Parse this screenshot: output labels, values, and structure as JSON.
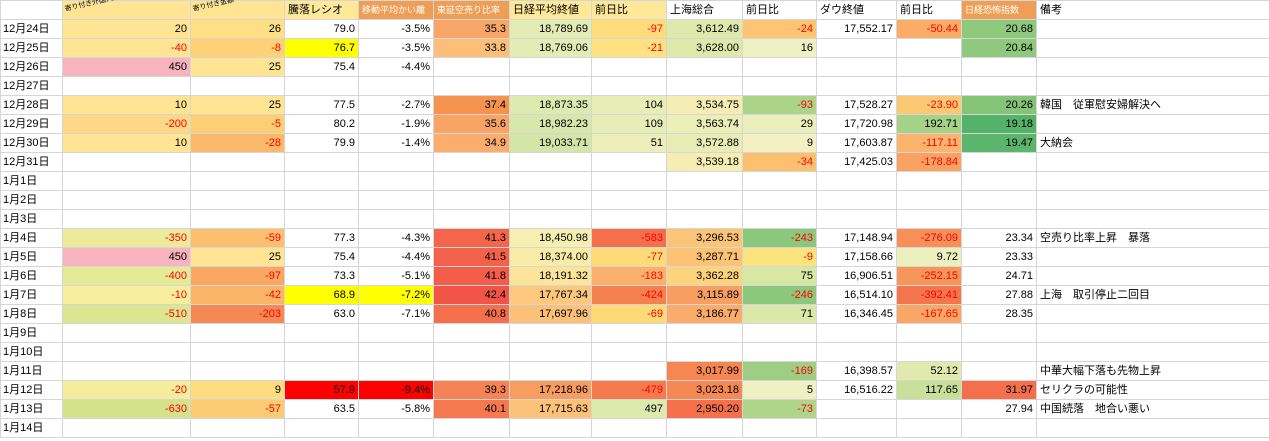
{
  "grid": {
    "headers": [
      {
        "label": ""
      },
      {
        "label": "寄り付き外国人売り買い（万株）",
        "bg": "#FFE593",
        "tiny": true
      },
      {
        "label": "寄り付き金額ベース（億）",
        "bg": "#FFE593",
        "tiny": true
      },
      {
        "label": "騰落レシオ",
        "bg": "#FFE999"
      },
      {
        "label": "移動平均かい離",
        "bg": "#EF9F55",
        "white": true,
        "small": true
      },
      {
        "label": "東証空売り比率",
        "bg": "#EF9F55",
        "white": true,
        "small": true
      },
      {
        "label": "日経平均終値",
        "bg": "#FFE999"
      },
      {
        "label": "前日比",
        "bg": "#FFE999"
      },
      {
        "label": "上海総合"
      },
      {
        "label": "前日比"
      },
      {
        "label": "ダウ終値"
      },
      {
        "label": "前日比"
      },
      {
        "label": "日経恐怖指数",
        "bg": "#EF9F55",
        "white": true,
        "small": true
      },
      {
        "label": "備考"
      }
    ],
    "rows": [
      {
        "date": "12月24日",
        "cells": [
          {
            "v": "20",
            "bg": "#FFE593"
          },
          {
            "v": "26",
            "bg": "#FEDF85"
          },
          {
            "v": "79.0"
          },
          {
            "v": "-3.5%"
          },
          {
            "v": "35.3",
            "bg": "#F9A768"
          },
          {
            "v": "18,789.69",
            "bg": "#E2ECB4"
          },
          {
            "v": "-97",
            "bg": "#FEDC7B",
            "red": true
          },
          {
            "v": "3,612.49",
            "bg": "#DFE9AC"
          },
          {
            "v": "-24",
            "bg": "#FDC474",
            "red": true
          },
          {
            "v": "17,552.17"
          },
          {
            "v": "-50.44",
            "bg": "#FBAC67",
            "red": true
          },
          {
            "v": "20.68",
            "bg": "#8FC97D"
          },
          {}
        ]
      },
      {
        "date": "12月25日",
        "cells": [
          {
            "v": "-40",
            "bg": "#FFE593",
            "red": true
          },
          {
            "v": "-8",
            "bg": "#FDD276",
            "red": true
          },
          {
            "v": "76.7",
            "bg": "#FFFF00"
          },
          {
            "v": "-3.5%"
          },
          {
            "v": "33.8",
            "bg": "#FCBE78"
          },
          {
            "v": "18,769.06",
            "bg": "#E3ECB5"
          },
          {
            "v": "-21",
            "bg": "#FEE180",
            "red": true
          },
          {
            "v": "3,628.00",
            "bg": "#DDE8AA"
          },
          {
            "v": "16",
            "bg": "#EDF0C0"
          },
          {},
          {},
          {
            "v": "20.84",
            "bg": "#8FC97D"
          },
          {}
        ]
      },
      {
        "date": "12月26日",
        "cells": [
          {
            "v": "450",
            "bg": "#F7B3BE"
          },
          {
            "v": "25",
            "bg": "#FFE593"
          },
          {
            "v": "75.4"
          },
          {
            "v": "-4.4%"
          },
          {},
          {},
          {},
          {},
          {},
          {},
          {},
          {},
          {}
        ]
      },
      {
        "date": "12月27日",
        "cells": []
      },
      {
        "date": "12月28日",
        "cells": [
          {
            "v": "10",
            "bg": "#FFE593"
          },
          {
            "v": "25",
            "bg": "#FFE593"
          },
          {
            "v": "77.5"
          },
          {
            "v": "-2.7%"
          },
          {
            "v": "37.4",
            "bg": "#F6934F"
          },
          {
            "v": "18,873.35",
            "bg": "#DEEAB0"
          },
          {
            "v": "104",
            "bg": "#E6EDB6"
          },
          {
            "v": "3,534.75",
            "bg": "#F5EDB4"
          },
          {
            "v": "-93",
            "bg": "#ACD489",
            "red": true
          },
          {
            "v": "17,528.27"
          },
          {
            "v": "-23.90",
            "bg": "#FDC873",
            "red": true
          },
          {
            "v": "20.26",
            "bg": "#84C476"
          },
          {
            "v": "韓国　従軍慰安婦解決へ"
          }
        ]
      },
      {
        "date": "12月29日",
        "cells": [
          {
            "v": "-200",
            "bg": "#FED886",
            "red": true
          },
          {
            "v": "-5",
            "bg": "#FDCF74",
            "red": true
          },
          {
            "v": "80.2"
          },
          {
            "v": "-1.9%"
          },
          {
            "v": "35.6",
            "bg": "#F9A465"
          },
          {
            "v": "18,982.23",
            "bg": "#D8E7AB"
          },
          {
            "v": "109",
            "bg": "#E6EDB6"
          },
          {
            "v": "3,563.74",
            "bg": "#EAEEB7"
          },
          {
            "v": "29",
            "bg": "#E9EFBC"
          },
          {
            "v": "17,720.98"
          },
          {
            "v": "192.71",
            "bg": "#A5D286"
          },
          {
            "v": "19.18",
            "bg": "#55B269"
          },
          {}
        ]
      },
      {
        "date": "12月30日",
        "cells": [
          {
            "v": "10",
            "bg": "#FFE593"
          },
          {
            "v": "-28",
            "bg": "#FBB96A",
            "red": true
          },
          {
            "v": "79.9"
          },
          {
            "v": "-1.4%"
          },
          {
            "v": "34.9",
            "bg": "#FAAD6C"
          },
          {
            "v": "19,033.71",
            "bg": "#D4E5A8"
          },
          {
            "v": "51",
            "bg": "#EDEFBA"
          },
          {
            "v": "3,572.88",
            "bg": "#E8EDB5"
          },
          {
            "v": "9",
            "bg": "#F2F1C3"
          },
          {
            "v": "17,603.87"
          },
          {
            "v": "-117.11",
            "bg": "#FAB46D",
            "red": true
          },
          {
            "v": "19.47",
            "bg": "#5CB56C"
          },
          {
            "v": "大納会"
          }
        ]
      },
      {
        "date": "12月31日",
        "cells": [
          {},
          {},
          {},
          {},
          {},
          {},
          {},
          {
            "v": "3,539.18",
            "bg": "#F5EDB4"
          },
          {
            "v": "-34",
            "bg": "#FCC06F",
            "red": true
          },
          {
            "v": "17,425.03"
          },
          {
            "v": "-178.84",
            "bg": "#F9A262",
            "red": true
          },
          {},
          {}
        ]
      },
      {
        "date": "1月1日",
        "cells": []
      },
      {
        "date": "1月2日",
        "cells": []
      },
      {
        "date": "1月3日",
        "cells": []
      },
      {
        "date": "1月4日",
        "cells": [
          {
            "v": "-350",
            "bg": "#EDEB9A",
            "red": true
          },
          {
            "v": "-59",
            "bg": "#FBBF6E",
            "red": true
          },
          {
            "v": "77.3"
          },
          {
            "v": "-4.3%"
          },
          {
            "v": "41.3",
            "bg": "#F4664B"
          },
          {
            "v": "18,450.98",
            "bg": "#F7EFB2"
          },
          {
            "v": "-583",
            "bg": "#F4704D",
            "red": true
          },
          {
            "v": "3,296.53",
            "bg": "#FCC476"
          },
          {
            "v": "-243",
            "bg": "#8CC87B",
            "red": true
          },
          {
            "v": "17,148.94"
          },
          {
            "v": "-276.09",
            "bg": "#F78F58",
            "red": true
          },
          {
            "v": "23.34"
          },
          {
            "v": "空売り比率上昇　暴落"
          }
        ]
      },
      {
        "date": "1月5日",
        "cells": [
          {
            "v": "450",
            "bg": "#F7B3BE"
          },
          {
            "v": "25",
            "bg": "#FFE593"
          },
          {
            "v": "75.4"
          },
          {
            "v": "-4.4%"
          },
          {
            "v": "41.5",
            "bg": "#F3614A"
          },
          {
            "v": "18,374.00",
            "bg": "#F9ECA8"
          },
          {
            "v": "-77",
            "bg": "#FEDA79",
            "red": true
          },
          {
            "v": "3,287.71",
            "bg": "#FCC375"
          },
          {
            "v": "-9",
            "bg": "#FBE47D",
            "red": true
          },
          {
            "v": "17,158.66"
          },
          {
            "v": "9.72",
            "bg": "#EBF0BE"
          },
          {
            "v": "23.33"
          },
          {}
        ]
      },
      {
        "date": "1月6日",
        "cells": [
          {
            "v": "-400",
            "bg": "#E4EA96",
            "red": true
          },
          {
            "v": "-97",
            "bg": "#F9A763",
            "red": true
          },
          {
            "v": "73.3"
          },
          {
            "v": "-5.1%"
          },
          {
            "v": "41.8",
            "bg": "#F35D49"
          },
          {
            "v": "18,191.32",
            "bg": "#FCE49A"
          },
          {
            "v": "-183",
            "bg": "#FBB16B",
            "red": true
          },
          {
            "v": "3,362.28",
            "bg": "#FDD47C"
          },
          {
            "v": "75",
            "bg": "#D9E7A5"
          },
          {
            "v": "16,906.51"
          },
          {
            "v": "-252.15",
            "bg": "#F79659",
            "red": true
          },
          {
            "v": "24.71"
          },
          {}
        ]
      },
      {
        "date": "1月7日",
        "cells": [
          {
            "v": "-10",
            "bg": "#F6EE9E",
            "red": true
          },
          {
            "v": "-42",
            "bg": "#FBB569",
            "red": true
          },
          {
            "v": "68.9",
            "bg": "#FFFF00"
          },
          {
            "v": "-7.2%",
            "bg": "#FFFF00"
          },
          {
            "v": "42.4",
            "bg": "#F25548"
          },
          {
            "v": "17,767.34",
            "bg": "#FCC77E"
          },
          {
            "v": "-424",
            "bg": "#F5814F",
            "red": true
          },
          {
            "v": "3,115.89",
            "bg": "#F89E60"
          },
          {
            "v": "-246",
            "bg": "#8CC87B",
            "red": true
          },
          {
            "v": "16,514.10"
          },
          {
            "v": "-392.41",
            "bg": "#F4764E",
            "red": true
          },
          {
            "v": "27.88"
          },
          {
            "v": "上海　取引停止二回目"
          }
        ]
      },
      {
        "date": "1月8日",
        "cells": [
          {
            "v": "-510",
            "bg": "#DCE691",
            "red": true
          },
          {
            "v": "-203",
            "bg": "#F58953",
            "red": true
          },
          {
            "v": "63.0"
          },
          {
            "v": "-7.1%"
          },
          {
            "v": "40.8",
            "bg": "#F4704D"
          },
          {
            "v": "17,697.96",
            "bg": "#FBC178"
          },
          {
            "v": "-69",
            "bg": "#FED978",
            "red": true
          },
          {
            "v": "3,186.77",
            "bg": "#FAAD6A"
          },
          {
            "v": "71",
            "bg": "#DBE8A7"
          },
          {
            "v": "16,346.45"
          },
          {
            "v": "-167.65",
            "bg": "#F9A767",
            "red": true
          },
          {
            "v": "28.35"
          },
          {}
        ]
      },
      {
        "date": "1月9日",
        "cells": []
      },
      {
        "date": "1月10日",
        "cells": []
      },
      {
        "date": "1月11日",
        "cells": [
          {},
          {},
          {},
          {},
          {},
          {},
          {},
          {
            "v": "3,017.99",
            "bg": "#F68752"
          },
          {
            "v": "-169",
            "bg": "#9ECE84",
            "red": true
          },
          {
            "v": "16,398.57"
          },
          {
            "v": "52.12",
            "bg": "#E0EAAE"
          },
          {},
          {
            "v": "中華大幅下落も先物上昇"
          }
        ]
      },
      {
        "date": "1月12日",
        "cells": [
          {
            "v": "-20",
            "bg": "#F4ED9C",
            "red": true
          },
          {
            "v": "9",
            "bg": "#FEDC80"
          },
          {
            "v": "57.9",
            "bg": "#FF0000"
          },
          {
            "v": "-9.4%",
            "bg": "#FF0000"
          },
          {
            "v": "39.3",
            "bg": "#F68355"
          },
          {
            "v": "17,218.96",
            "bg": "#F89D60"
          },
          {
            "v": "-479",
            "bg": "#F57B4E",
            "red": true
          },
          {
            "v": "3,023.18",
            "bg": "#F68853"
          },
          {
            "v": "5",
            "bg": "#F0F1C2"
          },
          {
            "v": "16,516.22"
          },
          {
            "v": "117.65",
            "bg": "#C8E09A"
          },
          {
            "v": "31.97",
            "bg": "#F4704C"
          },
          {
            "v": "セリクラの可能性"
          }
        ]
      },
      {
        "date": "1月13日",
        "cells": [
          {
            "v": "-630",
            "bg": "#D3E28B",
            "red": true
          },
          {
            "v": "-57",
            "bg": "#FACB72",
            "red": true
          },
          {
            "v": "63.5"
          },
          {
            "v": "-5.8%"
          },
          {
            "v": "40.1",
            "bg": "#F5784F"
          },
          {
            "v": "17,715.63",
            "bg": "#FBC279"
          },
          {
            "v": "497",
            "bg": "#DDEAAE"
          },
          {
            "v": "2,950.20",
            "bg": "#F4714B"
          },
          {
            "v": "-73",
            "bg": "#AED58A",
            "red": true
          },
          {},
          {},
          {
            "v": "27.94"
          },
          {
            "v": "中国続落　地合い悪い"
          }
        ]
      },
      {
        "date": "1月14日",
        "cells": []
      }
    ]
  },
  "colors": {
    "negative_text": "#FF0000",
    "gridline": "#D6D6D6",
    "highlight_yellow": "#FFFF00",
    "highlight_red": "#FF0000",
    "highlight_pink": "#F7B3BE"
  }
}
